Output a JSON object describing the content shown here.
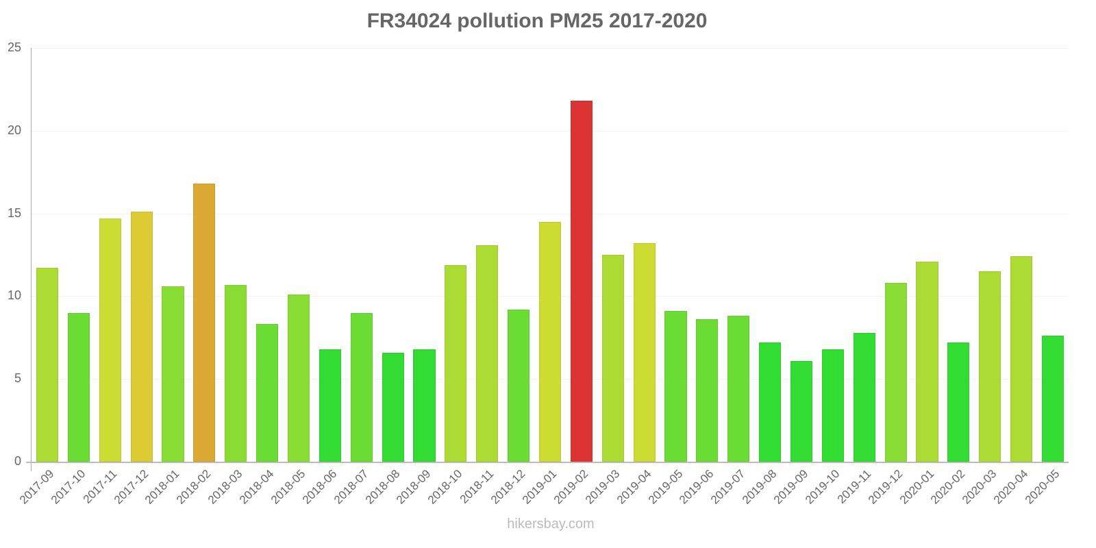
{
  "chart_data": {
    "type": "bar",
    "title": "FR34024 pollution PM25 2017-2020",
    "xlabel": "",
    "ylabel": "",
    "ylim": [
      0,
      25
    ],
    "yticks": [
      0,
      5,
      10,
      15,
      20,
      25
    ],
    "grid": true,
    "legend": null,
    "categories": [
      "2017-09",
      "2017-10",
      "2017-11",
      "2017-12",
      "2018-01",
      "2018-02",
      "2018-03",
      "2018-04",
      "2018-05",
      "2018-06",
      "2018-07",
      "2018-08",
      "2018-09",
      "2018-10",
      "2018-11",
      "2018-12",
      "2019-01",
      "2019-02",
      "2019-03",
      "2019-04",
      "2019-05",
      "2019-06",
      "2019-07",
      "2019-08",
      "2019-09",
      "2019-10",
      "2019-11",
      "2019-12",
      "2020-01",
      "2020-02",
      "2020-03",
      "2020-04",
      "2020-05"
    ],
    "values": [
      11.7,
      9.0,
      14.7,
      15.1,
      10.6,
      16.8,
      10.7,
      8.3,
      10.1,
      6.8,
      9.0,
      6.6,
      6.8,
      11.9,
      13.1,
      9.2,
      14.5,
      21.8,
      12.5,
      13.2,
      9.1,
      8.6,
      8.8,
      7.2,
      6.1,
      6.8,
      7.8,
      10.8,
      12.1,
      7.2,
      11.5,
      12.4,
      7.6
    ],
    "colors": [
      "#acdc33",
      "#6adc33",
      "#cddc33",
      "#dccb33",
      "#89dc33",
      "#dca933",
      "#89dc33",
      "#6adc33",
      "#89dc33",
      "#33dc33",
      "#6adc33",
      "#33dc33",
      "#33dc33",
      "#acdc33",
      "#acdc33",
      "#6adc33",
      "#cddc33",
      "#dc3333",
      "#acdc33",
      "#cddc33",
      "#6adc33",
      "#6adc33",
      "#6adc33",
      "#33dc33",
      "#33dc33",
      "#33dc33",
      "#33dc33",
      "#89dc33",
      "#acdc33",
      "#33dc33",
      "#acdc33",
      "#acdc33",
      "#33dc33"
    ]
  },
  "watermark": "hikersbay.com"
}
